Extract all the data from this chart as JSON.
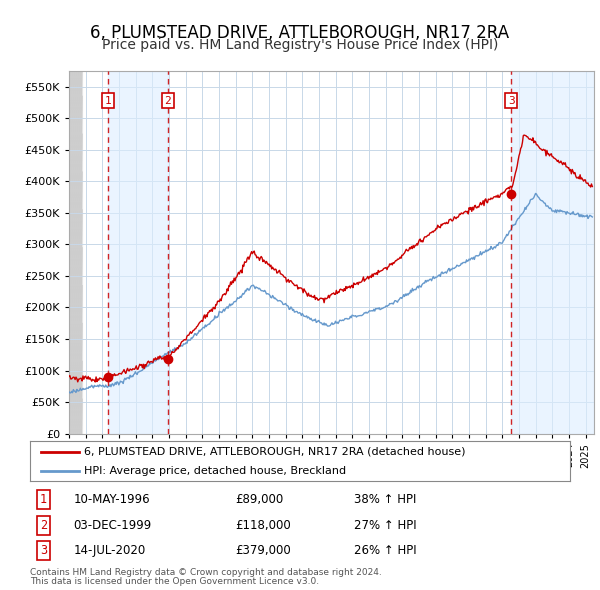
{
  "title": "6, PLUMSTEAD DRIVE, ATTLEBOROUGH, NR17 2RA",
  "subtitle": "Price paid vs. HM Land Registry's House Price Index (HPI)",
  "title_fontsize": 12,
  "subtitle_fontsize": 10,
  "ylim": [
    0,
    575000
  ],
  "yticks": [
    0,
    50000,
    100000,
    150000,
    200000,
    250000,
    300000,
    350000,
    400000,
    450000,
    500000,
    550000
  ],
  "ytick_labels": [
    "£0",
    "£50K",
    "£100K",
    "£150K",
    "£200K",
    "£250K",
    "£300K",
    "£350K",
    "£400K",
    "£450K",
    "£500K",
    "£550K"
  ],
  "xmin": 1994.0,
  "xmax": 2025.5,
  "bg_color": "#ffffff",
  "grid_color": "#c8d8e8",
  "transactions": [
    {
      "label": "1",
      "year": 1996.36,
      "price": 89000,
      "date": "10-MAY-1996",
      "pct": "38%",
      "dir": "↑"
    },
    {
      "label": "2",
      "year": 1999.92,
      "price": 118000,
      "date": "03-DEC-1999",
      "pct": "27%",
      "dir": "↑"
    },
    {
      "label": "3",
      "year": 2020.53,
      "price": 379000,
      "date": "14-JUL-2020",
      "pct": "26%",
      "dir": "↑"
    }
  ],
  "legend_line1": "6, PLUMSTEAD DRIVE, ATTLEBOROUGH, NR17 2RA (detached house)",
  "legend_line2": "HPI: Average price, detached house, Breckland",
  "footer1": "Contains HM Land Registry data © Crown copyright and database right 2024.",
  "footer2": "This data is licensed under the Open Government Licence v3.0.",
  "red_color": "#cc0000",
  "blue_color": "#6699cc",
  "shade_color": "#ddeeff"
}
